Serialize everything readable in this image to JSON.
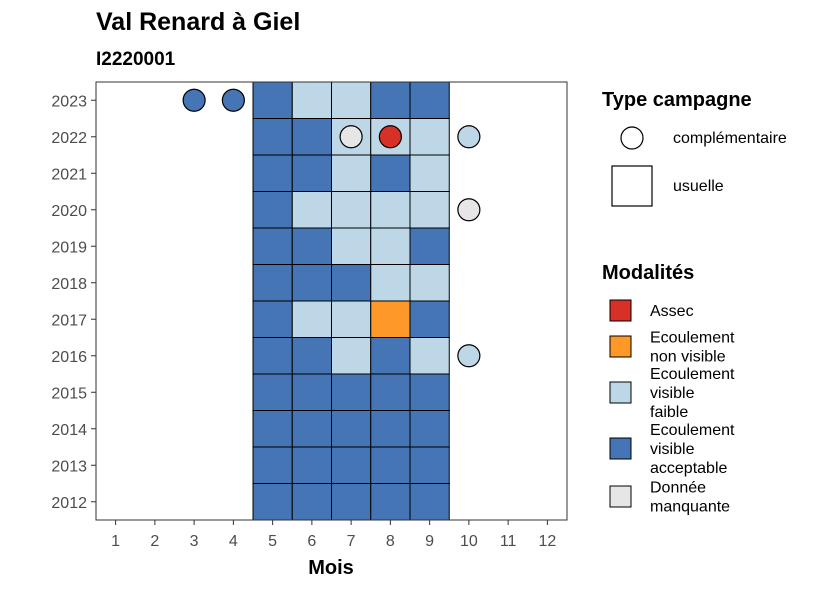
{
  "chart_data": {
    "type": "heatmap",
    "title": "Val Renard à Giel",
    "subtitle": "I2220001",
    "xlabel": "Mois",
    "ylabel": "",
    "x_ticks": [
      "1",
      "2",
      "3",
      "4",
      "5",
      "6",
      "7",
      "8",
      "9",
      "10",
      "11",
      "12"
    ],
    "y_ticks": [
      "2012",
      "2013",
      "2014",
      "2015",
      "2016",
      "2017",
      "2018",
      "2019",
      "2020",
      "2021",
      "2022",
      "2023"
    ],
    "xlim": [
      0.5,
      12.5
    ],
    "ylim": [
      2011.5,
      2023.5
    ],
    "grid": false,
    "legend_placement": "right",
    "colors": {
      "Assec": "#d73027",
      "Ecoulement non visible": "#fe9929",
      "Ecoulement visible faible": "#bdd7e7",
      "Ecoulement visible acceptable": "#4575b4",
      "Donnée manquante": "#e6e6e6"
    },
    "cells": [
      {
        "year": 2023,
        "month": 5,
        "modalite": "Ecoulement visible acceptable"
      },
      {
        "year": 2023,
        "month": 6,
        "modalite": "Ecoulement visible faible"
      },
      {
        "year": 2023,
        "month": 7,
        "modalite": "Ecoulement visible faible"
      },
      {
        "year": 2023,
        "month": 8,
        "modalite": "Ecoulement visible acceptable"
      },
      {
        "year": 2023,
        "month": 9,
        "modalite": "Ecoulement visible acceptable"
      },
      {
        "year": 2022,
        "month": 5,
        "modalite": "Ecoulement visible acceptable"
      },
      {
        "year": 2022,
        "month": 6,
        "modalite": "Ecoulement visible acceptable"
      },
      {
        "year": 2022,
        "month": 7,
        "modalite": "Ecoulement visible faible"
      },
      {
        "year": 2022,
        "month": 8,
        "modalite": "Ecoulement visible faible"
      },
      {
        "year": 2022,
        "month": 9,
        "modalite": "Ecoulement visible faible"
      },
      {
        "year": 2021,
        "month": 5,
        "modalite": "Ecoulement visible acceptable"
      },
      {
        "year": 2021,
        "month": 6,
        "modalite": "Ecoulement visible acceptable"
      },
      {
        "year": 2021,
        "month": 7,
        "modalite": "Ecoulement visible faible"
      },
      {
        "year": 2021,
        "month": 8,
        "modalite": "Ecoulement visible acceptable"
      },
      {
        "year": 2021,
        "month": 9,
        "modalite": "Ecoulement visible faible"
      },
      {
        "year": 2020,
        "month": 5,
        "modalite": "Ecoulement visible acceptable"
      },
      {
        "year": 2020,
        "month": 6,
        "modalite": "Ecoulement visible faible"
      },
      {
        "year": 2020,
        "month": 7,
        "modalite": "Ecoulement visible faible"
      },
      {
        "year": 2020,
        "month": 8,
        "modalite": "Ecoulement visible faible"
      },
      {
        "year": 2020,
        "month": 9,
        "modalite": "Ecoulement visible faible"
      },
      {
        "year": 2019,
        "month": 5,
        "modalite": "Ecoulement visible acceptable"
      },
      {
        "year": 2019,
        "month": 6,
        "modalite": "Ecoulement visible acceptable"
      },
      {
        "year": 2019,
        "month": 7,
        "modalite": "Ecoulement visible faible"
      },
      {
        "year": 2019,
        "month": 8,
        "modalite": "Ecoulement visible faible"
      },
      {
        "year": 2019,
        "month": 9,
        "modalite": "Ecoulement visible acceptable"
      },
      {
        "year": 2018,
        "month": 5,
        "modalite": "Ecoulement visible acceptable"
      },
      {
        "year": 2018,
        "month": 6,
        "modalite": "Ecoulement visible acceptable"
      },
      {
        "year": 2018,
        "month": 7,
        "modalite": "Ecoulement visible acceptable"
      },
      {
        "year": 2018,
        "month": 8,
        "modalite": "Ecoulement visible faible"
      },
      {
        "year": 2018,
        "month": 9,
        "modalite": "Ecoulement visible faible"
      },
      {
        "year": 2017,
        "month": 5,
        "modalite": "Ecoulement visible acceptable"
      },
      {
        "year": 2017,
        "month": 6,
        "modalite": "Ecoulement visible faible"
      },
      {
        "year": 2017,
        "month": 7,
        "modalite": "Ecoulement visible faible"
      },
      {
        "year": 2017,
        "month": 8,
        "modalite": "Ecoulement non visible"
      },
      {
        "year": 2017,
        "month": 9,
        "modalite": "Ecoulement visible acceptable"
      },
      {
        "year": 2016,
        "month": 5,
        "modalite": "Ecoulement visible acceptable"
      },
      {
        "year": 2016,
        "month": 6,
        "modalite": "Ecoulement visible acceptable"
      },
      {
        "year": 2016,
        "month": 7,
        "modalite": "Ecoulement visible faible"
      },
      {
        "year": 2016,
        "month": 8,
        "modalite": "Ecoulement visible acceptable"
      },
      {
        "year": 2016,
        "month": 9,
        "modalite": "Ecoulement visible faible"
      },
      {
        "year": 2015,
        "month": 5,
        "modalite": "Ecoulement visible acceptable"
      },
      {
        "year": 2015,
        "month": 6,
        "modalite": "Ecoulement visible acceptable"
      },
      {
        "year": 2015,
        "month": 7,
        "modalite": "Ecoulement visible acceptable"
      },
      {
        "year": 2015,
        "month": 8,
        "modalite": "Ecoulement visible acceptable"
      },
      {
        "year": 2015,
        "month": 9,
        "modalite": "Ecoulement visible acceptable"
      },
      {
        "year": 2014,
        "month": 5,
        "modalite": "Ecoulement visible acceptable"
      },
      {
        "year": 2014,
        "month": 6,
        "modalite": "Ecoulement visible acceptable"
      },
      {
        "year": 2014,
        "month": 7,
        "modalite": "Ecoulement visible acceptable"
      },
      {
        "year": 2014,
        "month": 8,
        "modalite": "Ecoulement visible acceptable"
      },
      {
        "year": 2014,
        "month": 9,
        "modalite": "Ecoulement visible acceptable"
      },
      {
        "year": 2013,
        "month": 5,
        "modalite": "Ecoulement visible acceptable"
      },
      {
        "year": 2013,
        "month": 6,
        "modalite": "Ecoulement visible acceptable"
      },
      {
        "year": 2013,
        "month": 7,
        "modalite": "Ecoulement visible acceptable"
      },
      {
        "year": 2013,
        "month": 8,
        "modalite": "Ecoulement visible acceptable"
      },
      {
        "year": 2013,
        "month": 9,
        "modalite": "Ecoulement visible acceptable"
      },
      {
        "year": 2012,
        "month": 5,
        "modalite": "Ecoulement visible acceptable"
      },
      {
        "year": 2012,
        "month": 6,
        "modalite": "Ecoulement visible acceptable"
      },
      {
        "year": 2012,
        "month": 7,
        "modalite": "Ecoulement visible acceptable"
      },
      {
        "year": 2012,
        "month": 8,
        "modalite": "Ecoulement visible acceptable"
      },
      {
        "year": 2012,
        "month": 9,
        "modalite": "Ecoulement visible acceptable"
      }
    ],
    "points": [
      {
        "year": 2023,
        "month": 3,
        "modalite": "Ecoulement visible acceptable"
      },
      {
        "year": 2023,
        "month": 4,
        "modalite": "Ecoulement visible acceptable"
      },
      {
        "year": 2022,
        "month": 7,
        "modalite": "Donnée manquante"
      },
      {
        "year": 2022,
        "month": 8,
        "modalite": "Assec"
      },
      {
        "year": 2022,
        "month": 10,
        "modalite": "Ecoulement visible faible"
      },
      {
        "year": 2020,
        "month": 10,
        "modalite": "Donnée manquante"
      },
      {
        "year": 2016,
        "month": 10,
        "modalite": "Ecoulement visible faible"
      }
    ],
    "legend": {
      "type_campagne": {
        "title": "Type campagne",
        "items": [
          {
            "label": "complémentaire",
            "shape": "circle"
          },
          {
            "label": "usuelle",
            "shape": "square"
          }
        ]
      },
      "modalites": {
        "title": "Modalités",
        "items": [
          {
            "key": "Assec",
            "lines": [
              "Assec"
            ]
          },
          {
            "key": "Ecoulement non visible",
            "lines": [
              "Ecoulement",
              "non visible"
            ]
          },
          {
            "key": "Ecoulement visible faible",
            "lines": [
              "Ecoulement",
              "visible",
              "faible"
            ]
          },
          {
            "key": "Ecoulement visible acceptable",
            "lines": [
              "Ecoulement",
              "visible",
              "acceptable"
            ]
          },
          {
            "key": "Donnée manquante",
            "lines": [
              "Donnée",
              "manquante"
            ]
          }
        ]
      }
    }
  }
}
